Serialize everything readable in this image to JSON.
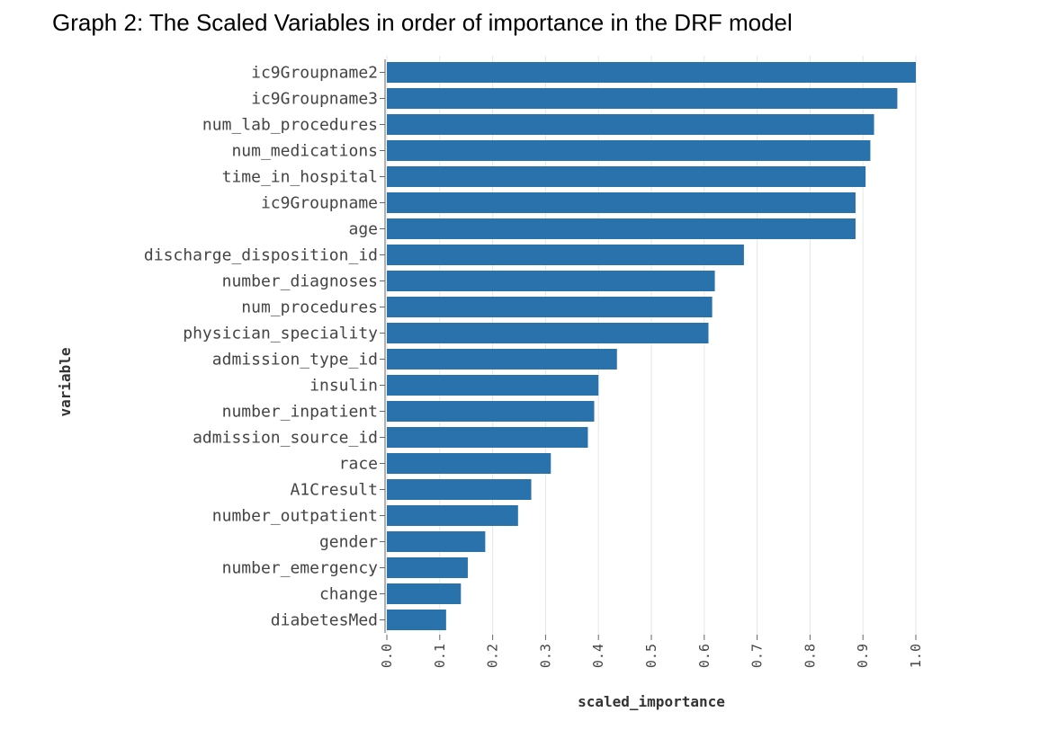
{
  "page": {
    "title": "Graph 2: The Scaled Variables in order of importance in the DRF model"
  },
  "chart_data": {
    "type": "bar",
    "orientation": "horizontal",
    "title": "",
    "xlabel": "scaled_importance",
    "ylabel": "variable",
    "xlim": [
      0.0,
      1.0
    ],
    "xticks": [
      "0.0",
      "0.1",
      "0.2",
      "0.3",
      "0.4",
      "0.5",
      "0.6",
      "0.7",
      "0.8",
      "0.9",
      "1.0"
    ],
    "grid": "vertical",
    "bar_color": "#2a72ab",
    "categories": [
      "ic9Groupname2",
      "ic9Groupname3",
      "num_lab_procedures",
      "num_medications",
      "time_in_hospital",
      "ic9Groupname",
      "age",
      "discharge_disposition_id",
      "number_diagnoses",
      "num_procedures",
      "physician_speciality",
      "admission_type_id",
      "insulin",
      "number_inpatient",
      "admission_source_id",
      "race",
      "A1Cresult",
      "number_outpatient",
      "gender",
      "number_emergency",
      "change",
      "diabetesMed"
    ],
    "values": [
      1.0,
      0.965,
      0.921,
      0.914,
      0.905,
      0.886,
      0.886,
      0.675,
      0.62,
      0.615,
      0.608,
      0.435,
      0.4,
      0.392,
      0.38,
      0.31,
      0.273,
      0.248,
      0.186,
      0.153,
      0.14,
      0.112
    ]
  }
}
